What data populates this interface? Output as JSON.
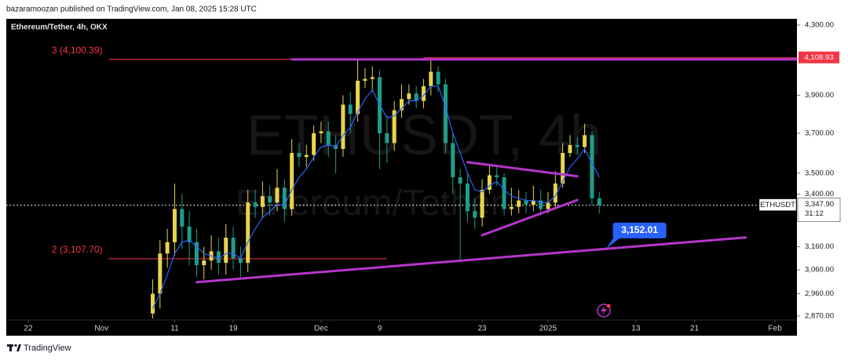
{
  "header": {
    "published": "bazaramoozan published on TradingView.com, Jan 08, 2025 15:28 UTC"
  },
  "chart_data": {
    "type": "candlestick",
    "title": "Ethereum/Tether, 4h, OKX",
    "watermark": "ETHUSDT, 4h",
    "watermark_sub": "Ethereum/Tether",
    "log_scale": true,
    "up_color": "#e8d44d",
    "down_color": "#1e9e8a",
    "xlim": [
      "2024-10-19",
      "2025-02-04"
    ],
    "xticks": [
      {
        "value": "2024-10-22",
        "label": "22"
      },
      {
        "value": "2024-11-01",
        "label": "Nov"
      },
      {
        "value": "2024-11-11",
        "label": "11"
      },
      {
        "value": "2024-11-19",
        "label": "19"
      },
      {
        "value": "2024-12-01",
        "label": "Dec"
      },
      {
        "value": "2024-12-09",
        "label": "9"
      },
      {
        "value": "2024-12-23",
        "label": "23"
      },
      {
        "value": "2025-01-01",
        "label": "2025"
      },
      {
        "value": "2025-01-13",
        "label": "13"
      },
      {
        "value": "2025-01-21",
        "label": "21"
      },
      {
        "value": "2025-02-01",
        "label": "Feb"
      }
    ],
    "ylim": [
      2854,
      4333
    ],
    "yticks": [
      {
        "value": 4300,
        "label": "4,300.00"
      },
      {
        "value": 3900,
        "label": "3,900.00"
      },
      {
        "value": 3700,
        "label": "3,700.00"
      },
      {
        "value": 3500,
        "label": "3,500.00"
      },
      {
        "value": 3400,
        "label": "3,400.00"
      },
      {
        "value": 3160,
        "label": "3,160.00"
      },
      {
        "value": 3060,
        "label": "3,060.00"
      },
      {
        "value": 2960,
        "label": "2,960.00"
      },
      {
        "value": 2870,
        "label": "2,870.00"
      }
    ],
    "x": [
      "2024-11-08",
      "2024-11-09",
      "2024-11-10",
      "2024-11-11",
      "2024-11-12",
      "2024-11-13",
      "2024-11-14",
      "2024-11-15",
      "2024-11-16",
      "2024-11-17",
      "2024-11-18",
      "2024-11-19",
      "2024-11-20",
      "2024-11-21",
      "2024-11-22",
      "2024-11-23",
      "2024-11-24",
      "2024-11-25",
      "2024-11-26",
      "2024-11-27",
      "2024-11-28",
      "2024-11-29",
      "2024-11-30",
      "2024-12-01",
      "2024-12-02",
      "2024-12-03",
      "2024-12-04",
      "2024-12-05",
      "2024-12-06",
      "2024-12-07",
      "2024-12-08",
      "2024-12-09",
      "2024-12-10",
      "2024-12-11",
      "2024-12-12",
      "2024-12-13",
      "2024-12-14",
      "2024-12-15",
      "2024-12-16",
      "2024-12-17",
      "2024-12-18",
      "2024-12-19",
      "2024-12-20",
      "2024-12-21",
      "2024-12-22",
      "2024-12-23",
      "2024-12-24",
      "2024-12-25",
      "2024-12-26",
      "2024-12-27",
      "2024-12-28",
      "2024-12-29",
      "2024-12-30",
      "2024-12-31",
      "2025-01-01",
      "2025-01-02",
      "2025-01-03",
      "2025-01-04",
      "2025-01-05",
      "2025-01-06",
      "2025-01-07",
      "2025-01-08"
    ],
    "open": [
      2880,
      2960,
      3130,
      3180,
      3330,
      3250,
      3180,
      3080,
      3100,
      3140,
      3090,
      3200,
      3110,
      3090,
      3360,
      3340,
      3390,
      3360,
      3430,
      3330,
      3600,
      3580,
      3590,
      3700,
      3710,
      3640,
      3620,
      3850,
      3800,
      3980,
      3990,
      4000,
      3700,
      3650,
      3820,
      3880,
      3910,
      3870,
      3950,
      4030,
      3960,
      3650,
      3480,
      3450,
      3320,
      3290,
      3420,
      3490,
      3480,
      3330,
      3340,
      3370,
      3350,
      3370,
      3330,
      3360,
      3450,
      3600,
      3640,
      3630,
      3690,
      3380
    ],
    "high": [
      3020,
      3190,
      3240,
      3450,
      3400,
      3320,
      3240,
      3160,
      3210,
      3200,
      3260,
      3250,
      3160,
      3420,
      3420,
      3460,
      3440,
      3520,
      3470,
      3670,
      3650,
      3640,
      3740,
      3760,
      3760,
      3690,
      3900,
      3920,
      4100,
      4050,
      4060,
      4040,
      3790,
      3870,
      3960,
      3960,
      3950,
      3990,
      4108,
      4060,
      3990,
      3700,
      3520,
      3500,
      3380,
      3470,
      3540,
      3540,
      3500,
      3430,
      3420,
      3410,
      3440,
      3420,
      3410,
      3510,
      3650,
      3690,
      3680,
      3750,
      3710,
      3410
    ],
    "low": [
      2860,
      2900,
      3070,
      3120,
      3150,
      3080,
      3030,
      3020,
      3060,
      3040,
      3040,
      3060,
      3030,
      3050,
      3290,
      3290,
      3300,
      3320,
      3270,
      3300,
      3530,
      3530,
      3560,
      3650,
      3580,
      3500,
      3580,
      3700,
      3760,
      3940,
      3920,
      3520,
      3550,
      3610,
      3780,
      3850,
      3830,
      3830,
      3900,
      3920,
      3600,
      3400,
      3100,
      3270,
      3240,
      3250,
      3400,
      3440,
      3300,
      3300,
      3310,
      3310,
      3320,
      3300,
      3310,
      3340,
      3430,
      3580,
      3590,
      3600,
      3350,
      3310
    ],
    "close": [
      2960,
      3130,
      3180,
      3330,
      3250,
      3180,
      3080,
      3100,
      3140,
      3090,
      3200,
      3110,
      3090,
      3360,
      3340,
      3390,
      3360,
      3430,
      3330,
      3600,
      3580,
      3590,
      3700,
      3710,
      3640,
      3620,
      3850,
      3800,
      3980,
      3990,
      4000,
      3700,
      3650,
      3820,
      3880,
      3910,
      3870,
      3950,
      4030,
      3960,
      3650,
      3480,
      3450,
      3320,
      3290,
      3420,
      3490,
      3480,
      3330,
      3340,
      3370,
      3350,
      3370,
      3330,
      3360,
      3450,
      3600,
      3640,
      3630,
      3690,
      3380,
      3347.9
    ],
    "ma": {
      "color": "#2962ff",
      "values": [
        2900,
        2960,
        3040,
        3130,
        3180,
        3190,
        3160,
        3130,
        3120,
        3110,
        3130,
        3130,
        3110,
        3180,
        3240,
        3290,
        3320,
        3350,
        3350,
        3420,
        3480,
        3520,
        3580,
        3630,
        3640,
        3630,
        3690,
        3730,
        3810,
        3880,
        3930,
        3850,
        3780,
        3790,
        3830,
        3870,
        3870,
        3900,
        3950,
        3950,
        3840,
        3700,
        3600,
        3500,
        3420,
        3410,
        3440,
        3460,
        3420,
        3390,
        3380,
        3370,
        3370,
        3360,
        3360,
        3390,
        3460,
        3530,
        3570,
        3620,
        3550,
        3480
      ]
    },
    "levels": [
      {
        "label": "3 (4,100.39)",
        "value": 4100.39,
        "from": "2024-11-02",
        "color": "#f23645"
      },
      {
        "label": "2 (3,107.70)",
        "value": 3107.7,
        "from": "2024-11-02",
        "to": "2024-12-10",
        "color": "#f23645"
      }
    ],
    "trendlines": [
      {
        "color": "#b536c9",
        "from": {
          "x": "2024-11-27",
          "y": 4100
        },
        "to": {
          "x": "2025-02-04",
          "y": 4100
        }
      },
      {
        "color": "#b536c9",
        "from": {
          "x": "2024-11-14",
          "y": 3008
        },
        "to": {
          "x": "2025-01-28",
          "y": 3201
        }
      },
      {
        "color": "#b536c9",
        "from": {
          "x": "2024-12-21",
          "y": 3554
        },
        "to": {
          "x": "2025-01-05",
          "y": 3485
        }
      },
      {
        "color": "#b536c9",
        "from": {
          "x": "2024-12-23",
          "y": 3211
        },
        "to": {
          "x": "2025-01-05",
          "y": 3372
        }
      }
    ],
    "price_marker": {
      "value": 4108.93,
      "label": "4,108.93",
      "from": "2024-12-15",
      "color": "#f23645"
    },
    "callout": {
      "value": 3152.01,
      "label": "3,152.01",
      "x": "2025-01-09",
      "color": "#2962ff"
    },
    "last_price": {
      "value": 3347.9,
      "label": "3,347.90",
      "symbol": "ETHUSDT",
      "countdown": "31:12"
    }
  },
  "footer": {
    "brand": "TradingView"
  }
}
